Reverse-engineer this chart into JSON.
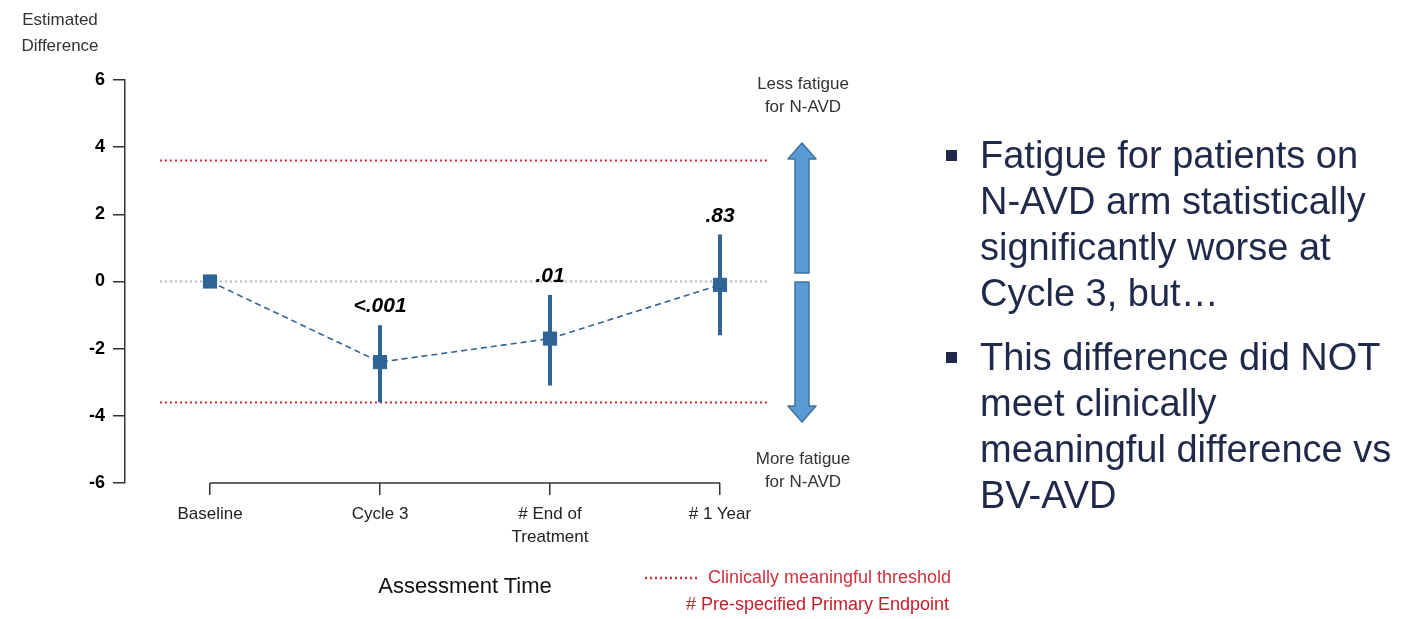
{
  "chart_data": {
    "type": "line",
    "ylabel": "Estimated Difference",
    "xlabel": "Assessment Time",
    "categories": [
      "Baseline",
      "Cycle 3",
      "# End of Treatment",
      "# 1 Year"
    ],
    "series": [
      {
        "color": "#2f6496",
        "values": [
          0,
          -2.4,
          -1.7,
          -0.1
        ],
        "errors": [
          null,
          [
            -3.6,
            -1.3
          ],
          [
            -3.1,
            -0.4
          ],
          [
            -1.6,
            1.4
          ]
        ]
      }
    ],
    "ylim": [
      -6,
      6
    ],
    "yticks": [
      -6,
      -4,
      -2,
      0,
      2,
      4,
      6
    ],
    "marker": "square",
    "line_style": "dashed",
    "ref_lines": [
      {
        "axis": "y",
        "value": 3.6,
        "label": "Clinically meaningful threshold",
        "color": "#d0303c",
        "line_style": "dotted"
      },
      {
        "axis": "y",
        "value": -3.6,
        "color": "#d0303c",
        "line_style": "dotted"
      },
      {
        "axis": "y",
        "value": 0,
        "color": "#aab6c2",
        "line_style": "dotted"
      }
    ],
    "annotations": [
      "Less fatigue for N-AVD",
      "More fatigue for N-AVD",
      "Fatigue for patients on N-AVD arm statistically significantly worse at Cycle 3, but…",
      "This difference did NOT meet clinically meaningful difference vs BV-AVD",
      "# Pre-specified Primary Endpoint",
      {
        "text": "<.001",
        "x": "Cycle 3",
        "y": -1.3
      },
      {
        "text": ".01",
        "x": "# End of Treatment",
        "y": -0.4
      },
      {
        "text": ".83",
        "x": "# 1 Year",
        "y": 1.4
      }
    ]
  }
}
